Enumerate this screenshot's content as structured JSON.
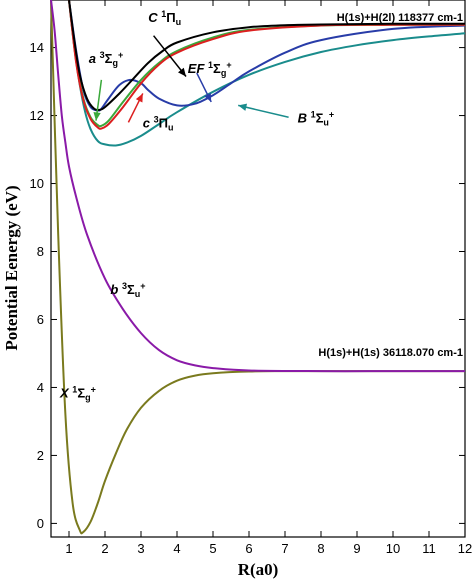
{
  "chart_data": {
    "type": "line",
    "xlabel": "R(a0)",
    "ylabel": "Potential Eenergy (eV)",
    "xlim": [
      0.5,
      12
    ],
    "ylim": [
      -0.4,
      15.4
    ],
    "x_ticks": [
      1,
      2,
      3,
      4,
      5,
      6,
      7,
      8,
      9,
      10,
      11,
      12
    ],
    "y_ticks": [
      0,
      2,
      4,
      6,
      8,
      10,
      12,
      14
    ],
    "dissociation_labels": {
      "upper": "H(1s)+H(2l) 118377 cm-1",
      "lower": "H(1s)+H(1s) 36118.070 cm-1"
    },
    "series": [
      {
        "name": "X 1Σg+",
        "color": "#7a7a1e",
        "x": [
          0.5,
          0.7,
          0.9,
          1.1,
          1.3,
          1.4,
          1.6,
          1.8,
          2.0,
          2.3,
          2.6,
          3.0,
          3.5,
          4.0,
          4.5,
          5.0,
          6.0,
          7.0,
          8.0,
          10.0,
          12.0
        ],
        "y": [
          15.4,
          8.5,
          3.2,
          0.6,
          -0.2,
          -0.25,
          0.05,
          0.6,
          1.25,
          2.05,
          2.75,
          3.4,
          3.9,
          4.2,
          4.35,
          4.42,
          4.47,
          4.48,
          4.48,
          4.48,
          4.48
        ]
      },
      {
        "name": "b 3Σu+",
        "color": "#8a1aa8",
        "x": [
          0.5,
          0.6,
          0.7,
          0.8,
          0.9,
          1.0,
          1.2,
          1.5,
          2.0,
          2.5,
          3.0,
          3.5,
          4.0,
          4.5,
          5.0,
          6.0,
          8.0,
          10.0,
          12.0
        ],
        "y": [
          15.4,
          14.5,
          13.2,
          12.0,
          11.2,
          10.5,
          9.6,
          8.5,
          7.2,
          6.3,
          5.6,
          5.1,
          4.8,
          4.65,
          4.57,
          4.5,
          4.48,
          4.48,
          4.48
        ]
      },
      {
        "name": "B 1Σu+",
        "color": "#1a8c8c",
        "x": [
          1.0,
          1.15,
          1.3,
          1.45,
          1.6,
          1.8,
          2.0,
          2.3,
          2.6,
          3.0,
          3.5,
          4.0,
          5.0,
          6.0,
          7.0,
          8.0,
          9.0,
          10.0,
          11.0,
          12.0
        ],
        "y": [
          15.4,
          14.0,
          12.9,
          12.1,
          11.6,
          11.25,
          11.15,
          11.12,
          11.2,
          11.4,
          11.75,
          12.1,
          12.7,
          13.2,
          13.58,
          13.87,
          14.07,
          14.22,
          14.33,
          14.42
        ]
      },
      {
        "name": "EF 1Σg+",
        "color": "#283ca8",
        "x": [
          1.0,
          1.2,
          1.4,
          1.6,
          1.8,
          1.9,
          2.1,
          2.4,
          2.7,
          3.0,
          3.2,
          3.5,
          4.0,
          4.5,
          5.0,
          5.5,
          6.0,
          7.0,
          8.0,
          10.0,
          12.0
        ],
        "y": [
          15.4,
          13.9,
          12.75,
          12.25,
          12.15,
          12.2,
          12.5,
          12.9,
          13.05,
          12.95,
          12.75,
          12.5,
          12.3,
          12.35,
          12.6,
          12.95,
          13.3,
          13.85,
          14.22,
          14.55,
          14.65
        ]
      },
      {
        "name": "a 3Σg+",
        "color": "#3aa83a",
        "x": [
          1.0,
          1.2,
          1.4,
          1.6,
          1.8,
          1.9,
          2.1,
          2.5,
          3.0,
          3.5,
          4.0,
          5.0,
          6.0,
          8.0,
          10.0,
          12.0
        ],
        "y": [
          15.4,
          13.6,
          12.5,
          11.95,
          11.72,
          11.7,
          11.85,
          12.4,
          13.05,
          13.55,
          13.9,
          14.3,
          14.52,
          14.65,
          14.67,
          14.67
        ]
      },
      {
        "name": "c 3Πu",
        "color": "#dc2020",
        "x": [
          1.0,
          1.2,
          1.4,
          1.6,
          1.8,
          1.9,
          2.1,
          2.5,
          3.0,
          3.5,
          4.0,
          5.0,
          6.0,
          8.0,
          10.0,
          12.0
        ],
        "y": [
          15.4,
          13.55,
          12.45,
          11.9,
          11.65,
          11.62,
          11.75,
          12.25,
          12.95,
          13.5,
          13.85,
          14.25,
          14.5,
          14.65,
          14.67,
          14.67
        ]
      },
      {
        "name": "C 1Πu",
        "color": "#000000",
        "x": [
          1.0,
          1.15,
          1.3,
          1.5,
          1.7,
          1.85,
          2.0,
          2.4,
          2.8,
          3.2,
          3.6,
          4.0,
          5.0,
          6.0,
          7.0,
          8.0,
          10.0,
          12.0
        ],
        "y": [
          15.4,
          14.2,
          13.2,
          12.5,
          12.2,
          12.17,
          12.25,
          12.65,
          13.1,
          13.55,
          13.9,
          14.15,
          14.45,
          14.6,
          14.66,
          14.68,
          14.7,
          14.7
        ]
      }
    ],
    "state_labels": [
      {
        "letter": "C",
        "sup": "1",
        "sym": "Π",
        "sub": "u",
        "sub_sign": "",
        "x": 3.2,
        "y": 14.75
      },
      {
        "letter": "a",
        "sup": "3",
        "sym": "Σ",
        "sub": "g",
        "sub_sign": "+",
        "x": 1.55,
        "y": 13.55
      },
      {
        "letter": "EF",
        "sup": "1",
        "sym": "Σ",
        "sub": "g",
        "sub_sign": "+",
        "x": 4.3,
        "y": 13.25
      },
      {
        "letter": "c",
        "sup": "3",
        "sym": "Π",
        "sub": "u",
        "sub_sign": "",
        "x": 3.05,
        "y": 11.65
      },
      {
        "letter": "B",
        "sup": "1",
        "sym": "Σ",
        "sub": "u",
        "sub_sign": "+",
        "x": 7.35,
        "y": 11.8
      },
      {
        "letter": "b",
        "sup": "3",
        "sym": "Σ",
        "sub": "u",
        "sub_sign": "+",
        "x": 2.15,
        "y": 6.75
      },
      {
        "letter": "X",
        "sup": "1",
        "sym": "Σ",
        "sub": "g",
        "sub_sign": "+",
        "x": 0.75,
        "y": 3.7
      }
    ],
    "arrows": [
      {
        "color": "#000000",
        "from": [
          3.35,
          14.35
        ],
        "to": [
          4.25,
          13.15
        ]
      },
      {
        "color": "#3aa83a",
        "from": [
          1.9,
          13.05
        ],
        "to": [
          1.75,
          11.85
        ]
      },
      {
        "color": "#dc2020",
        "from": [
          2.65,
          11.8
        ],
        "to": [
          3.05,
          12.65
        ]
      },
      {
        "color": "#283ca8",
        "from": [
          4.55,
          13.25
        ],
        "to": [
          4.95,
          12.4
        ]
      },
      {
        "color": "#1a8c8c",
        "from": [
          7.1,
          11.95
        ],
        "to": [
          5.7,
          12.3
        ]
      }
    ]
  }
}
